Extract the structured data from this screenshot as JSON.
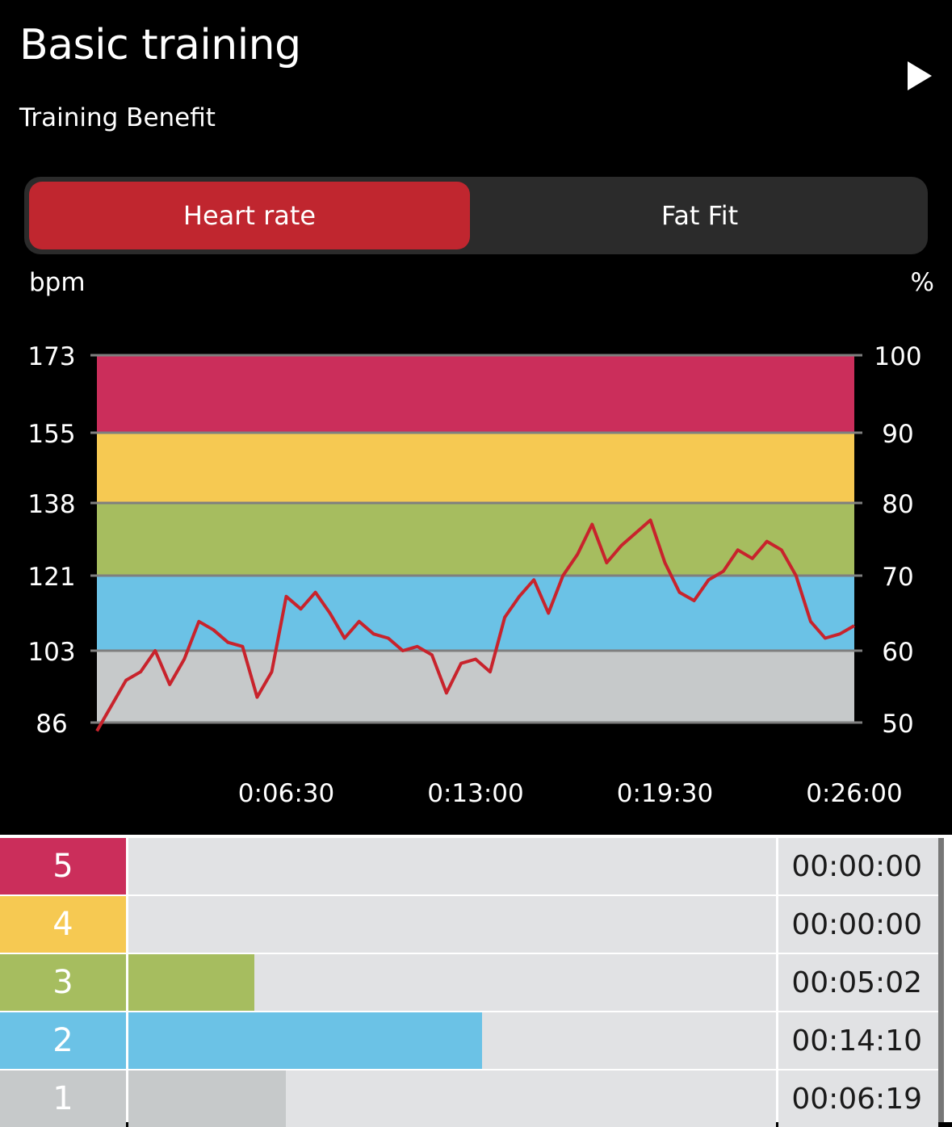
{
  "header": {
    "title": "Basic training",
    "subtitle": "Training Benefit",
    "play_icon": "play-icon"
  },
  "segmented_control": {
    "options": [
      {
        "label": "Heart rate",
        "active": true
      },
      {
        "label": "Fat Fit",
        "active": false
      }
    ]
  },
  "colors": {
    "zone5": "#cb2e5b",
    "zone4": "#f6c952",
    "zone3": "#a6bd5f",
    "zone2": "#6bc2e6",
    "zone1": "#c6c9ca",
    "line": "#c8232c",
    "accent": "#c0262f"
  },
  "chart_data": {
    "type": "line",
    "ylabel": "bpm",
    "y2label": "%",
    "ylim": [
      86,
      173
    ],
    "y_ticks": [
      "173",
      "155",
      "138",
      "121",
      "103",
      "86"
    ],
    "y2_ticks": [
      "100",
      "90",
      "80",
      "70",
      "60",
      "50"
    ],
    "x_ticks": [
      "0:06:30",
      "0:13:00",
      "0:19:30",
      "0:26:00"
    ],
    "xlim_seconds": [
      0,
      1560
    ],
    "zones": [
      {
        "zone": 5,
        "from": 155,
        "to": 173
      },
      {
        "zone": 4,
        "from": 138,
        "to": 155
      },
      {
        "zone": 3,
        "from": 121,
        "to": 138
      },
      {
        "zone": 2,
        "from": 103,
        "to": 121
      },
      {
        "zone": 1,
        "from": 86,
        "to": 103
      }
    ],
    "series": [
      {
        "x": [
          "0:00:00",
          "0:00:30",
          "0:01:00",
          "0:01:30",
          "0:02:00",
          "0:02:30",
          "0:03:00",
          "0:03:30",
          "0:04:00",
          "0:04:30",
          "0:05:00",
          "0:05:30",
          "0:06:00",
          "0:06:30",
          "0:07:00",
          "0:07:30",
          "0:08:00",
          "0:08:30",
          "0:09:00",
          "0:09:30",
          "0:10:00",
          "0:10:30",
          "0:11:00",
          "0:11:30",
          "0:12:00",
          "0:12:30",
          "0:13:00",
          "0:13:30",
          "0:14:00",
          "0:14:30",
          "0:15:00",
          "0:15:30",
          "0:16:00",
          "0:16:30",
          "0:17:00",
          "0:17:30",
          "0:18:00",
          "0:18:30",
          "0:19:00",
          "0:19:30",
          "0:20:00",
          "0:20:30",
          "0:21:00",
          "0:21:30",
          "0:22:00",
          "0:22:30",
          "0:23:00",
          "0:23:30",
          "0:24:00",
          "0:24:30",
          "0:25:00",
          "0:25:30",
          "0:26:00"
        ],
        "values": [
          84,
          90,
          96,
          98,
          103,
          95,
          101,
          110,
          108,
          105,
          104,
          92,
          98,
          116,
          113,
          117,
          112,
          106,
          110,
          107,
          106,
          103,
          104,
          102,
          93,
          100,
          101,
          98,
          111,
          116,
          120,
          112,
          121,
          126,
          133,
          124,
          128,
          131,
          134,
          124,
          117,
          115,
          120,
          122,
          127,
          125,
          129,
          127,
          121,
          110,
          106,
          107,
          109
        ]
      }
    ]
  },
  "zones_table": [
    {
      "zone": "5",
      "time": "00:00:00",
      "fraction": 0.0
    },
    {
      "zone": "4",
      "time": "00:00:00",
      "fraction": 0.0
    },
    {
      "zone": "3",
      "time": "00:05:02",
      "fraction": 0.195
    },
    {
      "zone": "2",
      "time": "00:14:10",
      "fraction": 0.546
    },
    {
      "zone": "1",
      "time": "00:06:19",
      "fraction": 0.243
    }
  ]
}
